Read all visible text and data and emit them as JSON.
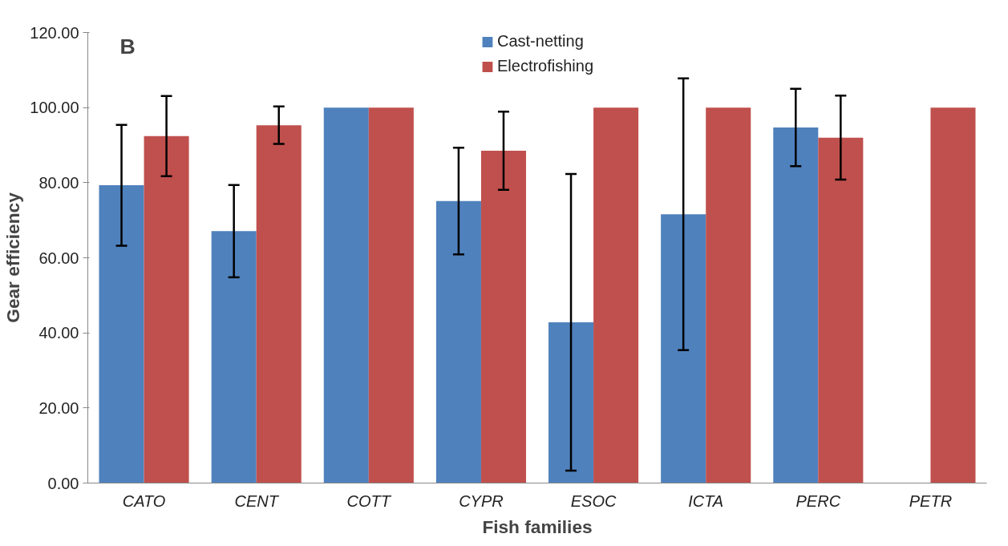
{
  "chart_data": {
    "type": "bar",
    "xlabel": "Fish families",
    "ylabel": "Gear efficiency",
    "annotations": [
      "B"
    ],
    "categories": [
      "CATO",
      "CENT",
      "COTT",
      "CYPR",
      "ESOC",
      "ICTA",
      "PERC",
      "PETR"
    ],
    "series": [
      {
        "name": "Cast-netting",
        "color": "#4f81bd",
        "values": [
          79.3,
          67.1,
          100,
          75.1,
          42.8,
          71.6,
          94.7,
          null
        ],
        "errors": [
          16.1,
          12.3,
          null,
          14.2,
          39.5,
          36.2,
          10.3,
          null
        ]
      },
      {
        "name": "Electrofishing",
        "color": "#c0504d",
        "values": [
          92.4,
          95.3,
          100,
          88.5,
          100,
          100,
          92.0,
          100
        ],
        "errors": [
          10.7,
          5.0,
          null,
          10.4,
          null,
          null,
          11.2,
          null
        ]
      }
    ],
    "ylim": [
      0,
      120
    ],
    "yticks": [
      {
        "value": 0,
        "label": "0.00"
      },
      {
        "value": 20,
        "label": "20.00"
      },
      {
        "value": 40,
        "label": "40.00"
      },
      {
        "value": 60,
        "label": "60.00"
      },
      {
        "value": 80,
        "label": "80.00"
      },
      {
        "value": 100,
        "label": "100.00"
      },
      {
        "value": 120,
        "label": "120.00"
      }
    ],
    "grid": false,
    "legend": "top"
  }
}
